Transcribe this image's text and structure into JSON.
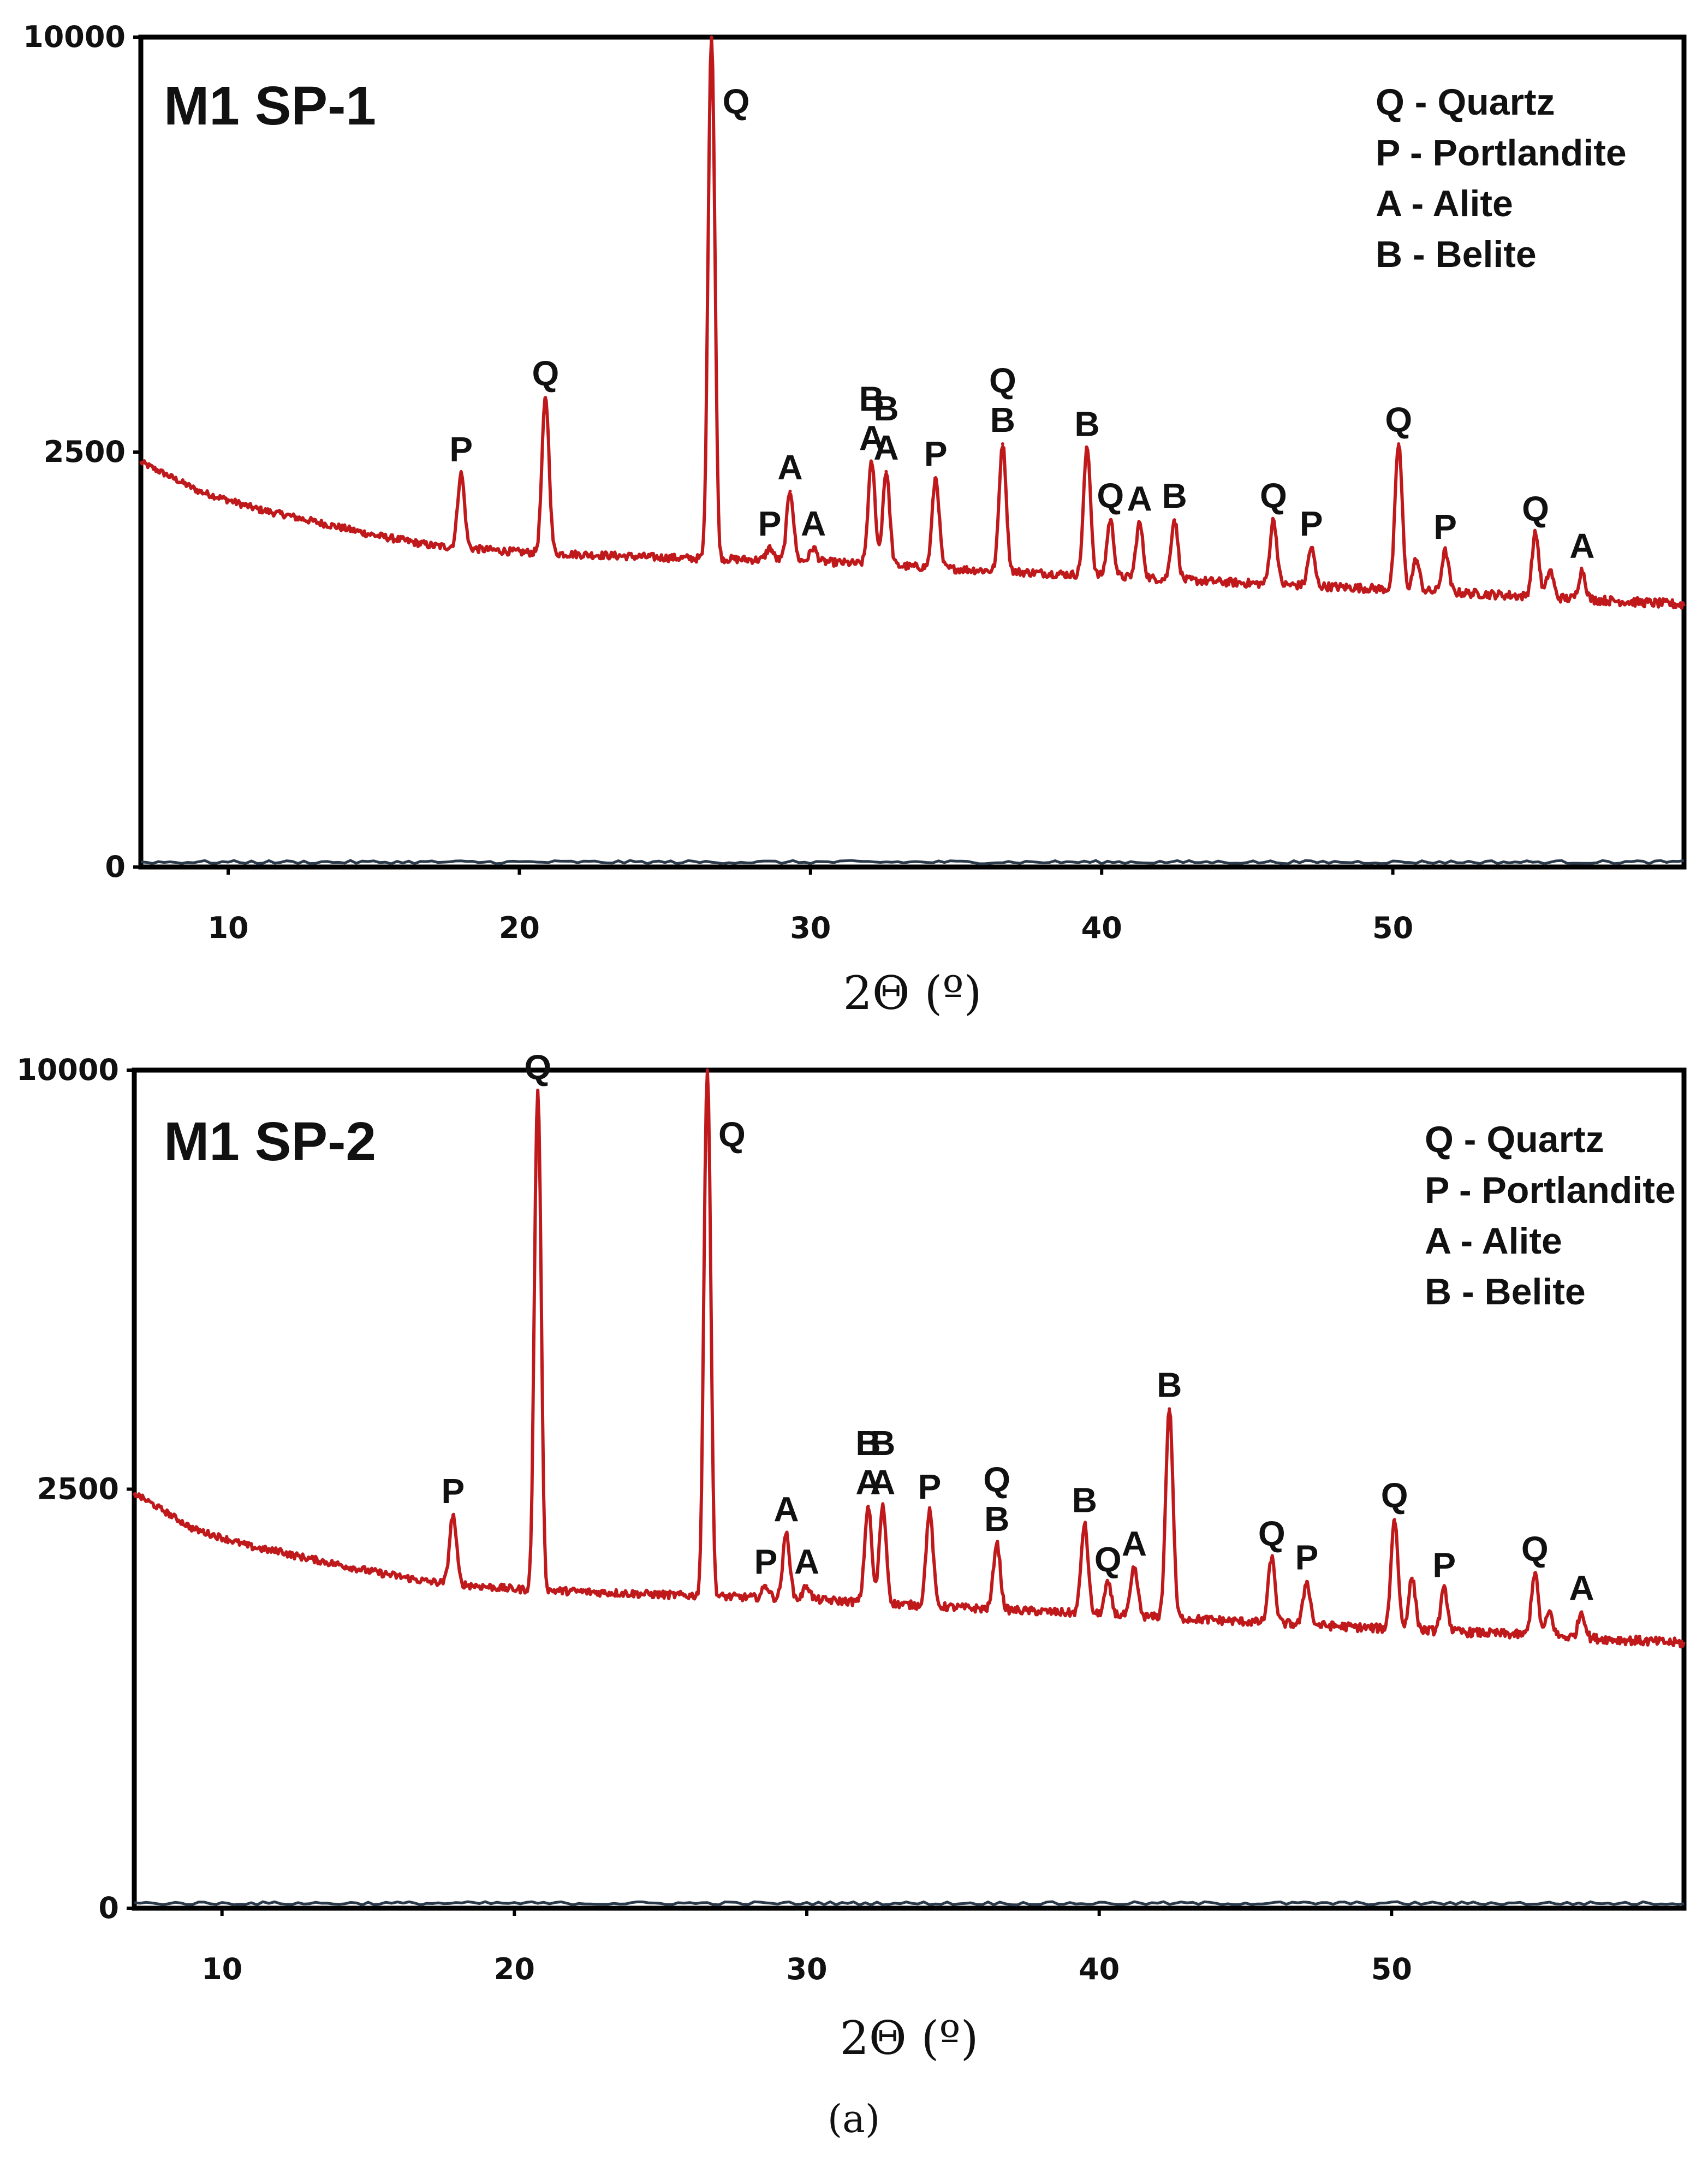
{
  "caption": "(a)",
  "chart_data": [
    {
      "type": "line",
      "title": "M1 SP-1",
      "xlabel": "2Θ (º)",
      "ylabel": "",
      "xlim": [
        7,
        60
      ],
      "ylim": [
        0,
        10000
      ],
      "xticks": [
        "10",
        "20",
        "30",
        "40",
        "50"
      ],
      "yticks": [
        "0",
        "2500",
        "10000"
      ],
      "legend": [
        "Q - Quartz",
        "P - Portlandite",
        "A - Alite",
        "B - Belite"
      ],
      "legend_position": "top-right",
      "line_color": "#c0191c",
      "baseline": [
        [
          7,
          2380
        ],
        [
          9,
          2050
        ],
        [
          11,
          1860
        ],
        [
          13,
          1730
        ],
        [
          15,
          1600
        ],
        [
          17,
          1500
        ],
        [
          20,
          1440
        ],
        [
          25,
          1390
        ],
        [
          30,
          1360
        ],
        [
          35,
          1290
        ],
        [
          40,
          1230
        ],
        [
          45,
          1170
        ],
        [
          50,
          1120
        ],
        [
          55,
          1060
        ],
        [
          60,
          1000
        ]
      ],
      "peaks": [
        {
          "x": 12.0,
          "y": 1800,
          "label": ""
        },
        {
          "x": 18.0,
          "y": 2250,
          "label": "P"
        },
        {
          "x": 20.9,
          "y": 3200,
          "label": "Q"
        },
        {
          "x": 26.6,
          "y": 10000,
          "label": "Q"
        },
        {
          "x": 28.6,
          "y": 1480,
          "label": "P"
        },
        {
          "x": 29.3,
          "y": 2050,
          "label": "A"
        },
        {
          "x": 30.1,
          "y": 1480,
          "label": "A"
        },
        {
          "x": 32.1,
          "y": 2380,
          "label": "B\nA"
        },
        {
          "x": 32.6,
          "y": 2270,
          "label": "B\nA"
        },
        {
          "x": 34.3,
          "y": 2200,
          "label": "P"
        },
        {
          "x": 36.6,
          "y": 2600,
          "label": "Q\nB"
        },
        {
          "x": 39.5,
          "y": 2550,
          "label": "B"
        },
        {
          "x": 40.3,
          "y": 1750,
          "label": "Q"
        },
        {
          "x": 41.3,
          "y": 1720,
          "label": "A"
        },
        {
          "x": 42.5,
          "y": 1750,
          "label": "B"
        },
        {
          "x": 45.9,
          "y": 1750,
          "label": "Q"
        },
        {
          "x": 47.2,
          "y": 1480,
          "label": "P"
        },
        {
          "x": 50.2,
          "y": 2600,
          "label": "Q"
        },
        {
          "x": 50.8,
          "y": 1370,
          "label": ""
        },
        {
          "x": 51.8,
          "y": 1450,
          "label": "P"
        },
        {
          "x": 54.9,
          "y": 1620,
          "label": "Q"
        },
        {
          "x": 55.4,
          "y": 1280,
          "label": ""
        },
        {
          "x": 56.5,
          "y": 1280,
          "label": "A"
        }
      ]
    },
    {
      "type": "line",
      "title": "M1 SP-2",
      "xlabel": "2Θ (º)",
      "ylabel": "",
      "xlim": [
        7,
        60
      ],
      "ylim": [
        0,
        10000
      ],
      "xticks": [
        "10",
        "20",
        "30",
        "40",
        "50"
      ],
      "yticks": [
        "0",
        "2500",
        "10000"
      ],
      "legend": [
        "Q - Quartz",
        "P - Portlandite",
        "A - Alite",
        "B - Belite"
      ],
      "legend_position": "top-right",
      "line_color": "#c0191c",
      "baseline": [
        [
          7,
          2450
        ],
        [
          9,
          2050
        ],
        [
          11,
          1860
        ],
        [
          13,
          1740
        ],
        [
          15,
          1620
        ],
        [
          17,
          1520
        ],
        [
          20,
          1450
        ],
        [
          25,
          1400
        ],
        [
          30,
          1360
        ],
        [
          35,
          1290
        ],
        [
          40,
          1230
        ],
        [
          45,
          1170
        ],
        [
          50,
          1110
        ],
        [
          55,
          1060
        ],
        [
          60,
          1000
        ]
      ],
      "peaks": [
        {
          "x": 12.0,
          "y": 1820,
          "label": ""
        },
        {
          "x": 17.9,
          "y": 2200,
          "label": "P"
        },
        {
          "x": 20.8,
          "y": 9500,
          "label": "Q"
        },
        {
          "x": 26.6,
          "y": 10000,
          "label": "Q"
        },
        {
          "x": 28.6,
          "y": 1480,
          "label": "P"
        },
        {
          "x": 29.3,
          "y": 2000,
          "label": "A"
        },
        {
          "x": 30.0,
          "y": 1480,
          "label": "A"
        },
        {
          "x": 32.1,
          "y": 2300,
          "label": "B\nA"
        },
        {
          "x": 32.6,
          "y": 2300,
          "label": "B\nA"
        },
        {
          "x": 34.2,
          "y": 2250,
          "label": "P"
        },
        {
          "x": 36.5,
          "y": 1900,
          "label": "Q\nB"
        },
        {
          "x": 39.5,
          "y": 2100,
          "label": "B"
        },
        {
          "x": 40.3,
          "y": 1500,
          "label": "Q"
        },
        {
          "x": 41.2,
          "y": 1650,
          "label": "A"
        },
        {
          "x": 42.4,
          "y": 3550,
          "label": "B"
        },
        {
          "x": 45.9,
          "y": 1750,
          "label": "Q"
        },
        {
          "x": 47.1,
          "y": 1520,
          "label": "P"
        },
        {
          "x": 50.1,
          "y": 2150,
          "label": "Q"
        },
        {
          "x": 50.7,
          "y": 1550,
          "label": ""
        },
        {
          "x": 51.8,
          "y": 1450,
          "label": "P"
        },
        {
          "x": 54.9,
          "y": 1600,
          "label": "Q"
        },
        {
          "x": 55.4,
          "y": 1250,
          "label": ""
        },
        {
          "x": 56.5,
          "y": 1250,
          "label": "A"
        }
      ]
    }
  ]
}
